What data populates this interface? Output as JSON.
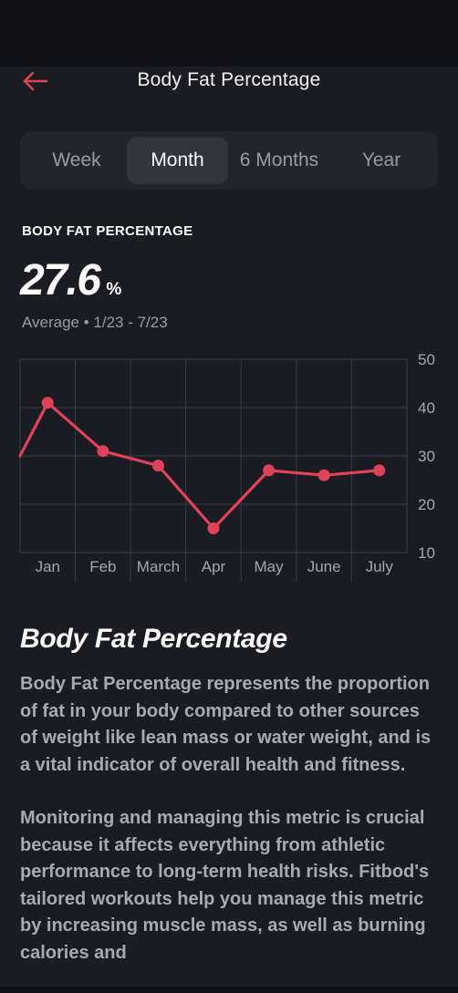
{
  "header": {
    "title": "Body Fat Percentage",
    "back_icon": "arrow-left-icon"
  },
  "segments": [
    {
      "label": "Week",
      "active": false
    },
    {
      "label": "Month",
      "active": true
    },
    {
      "label": "6 Months",
      "active": false
    },
    {
      "label": "Year",
      "active": false
    }
  ],
  "metric": {
    "label": "BODY FAT PERCENTAGE",
    "value": "27.6",
    "unit": "%",
    "subtitle": "Average • 1/23 - 7/23"
  },
  "colors": {
    "accent": "#e04259",
    "background": "#1b1b22",
    "segment_bg": "#24242c",
    "segment_active": "#34343d",
    "grid": "#3b3b44",
    "axis_text": "#a6a6ae"
  },
  "chart_data": {
    "type": "line",
    "title": "",
    "xlabel": "",
    "ylabel": "",
    "categories": [
      "Jan",
      "Feb",
      "March",
      "Apr",
      "May",
      "June",
      "July"
    ],
    "values": [
      41,
      31,
      28,
      15,
      27,
      26,
      27
    ],
    "left_edge_value": 30,
    "ylim": [
      10,
      50
    ],
    "yticks": [
      10,
      20,
      30,
      40,
      50
    ],
    "grid": true,
    "legend": "none"
  },
  "info": {
    "title": "Body Fat Percentage",
    "paragraphs": [
      "Body Fat Percentage represents the proportion of fat in your body compared to other sources of weight like lean mass or water weight, and is a vital indicator of overall health and fitness.",
      "Monitoring and managing this metric is crucial because it affects everything from athletic performance to long-term health risks. Fitbod's tailored workouts help you manage this metric by increasing muscle mass, as well as burning calories and"
    ]
  }
}
